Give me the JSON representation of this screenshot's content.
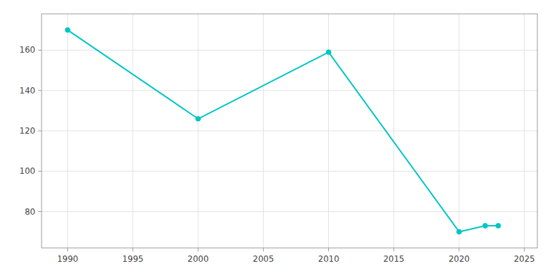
{
  "chart_data": {
    "type": "line",
    "x": [
      1990,
      2000,
      2010,
      2020,
      2022,
      2023
    ],
    "values": [
      170,
      126,
      159,
      70,
      73,
      73
    ],
    "color": "#00C5C5",
    "marker": "circle",
    "xlim": [
      1988,
      2026
    ],
    "ylim": [
      62,
      178
    ],
    "xticks": [
      1990,
      1995,
      2000,
      2005,
      2010,
      2015,
      2020,
      2025
    ],
    "yticks": [
      80,
      100,
      120,
      140,
      160
    ],
    "grid": true
  }
}
